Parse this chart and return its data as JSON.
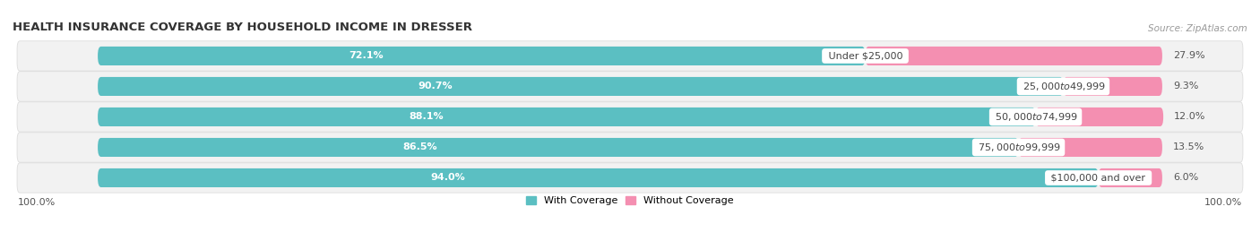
{
  "title": "HEALTH INSURANCE COVERAGE BY HOUSEHOLD INCOME IN DRESSER",
  "source": "Source: ZipAtlas.com",
  "categories": [
    "Under $25,000",
    "$25,000 to $49,999",
    "$50,000 to $74,999",
    "$75,000 to $99,999",
    "$100,000 and over"
  ],
  "with_coverage": [
    72.1,
    90.7,
    88.1,
    86.5,
    94.0
  ],
  "without_coverage": [
    27.9,
    9.3,
    12.0,
    13.5,
    6.0
  ],
  "color_with": "#5bbfc2",
  "color_without": "#f48fb1",
  "row_bg_color": "#efefef",
  "row_bg_color_alt": "#e8e8e8",
  "title_fontsize": 9.5,
  "label_fontsize": 8,
  "value_fontsize": 8,
  "bar_height": 0.62,
  "xlim_left": -8,
  "xlim_right": 108,
  "x_left_label": "100.0%",
  "x_right_label": "100.0%"
}
